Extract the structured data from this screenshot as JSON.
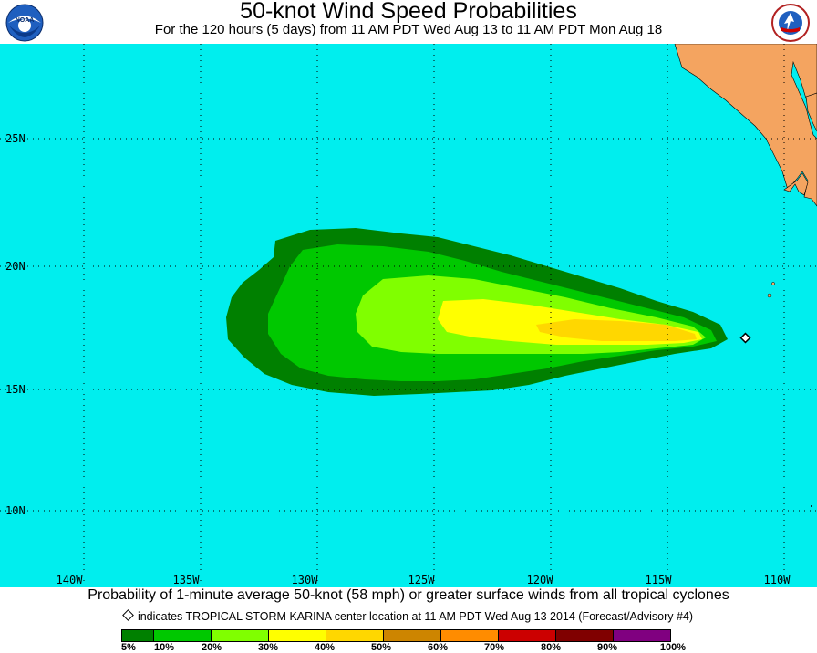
{
  "header": {
    "title": "50-knot Wind Speed Probabilities",
    "subtitle": "For the 120 hours (5 days) from 11 AM PDT Wed Aug 13 to 11 AM PDT Mon Aug 18",
    "left_logo_text": "NOAA",
    "right_logo_text": "NATIONAL WEATHER SERVICE"
  },
  "map": {
    "ocean_color": "#00eeee",
    "land_color": "#f4a460",
    "latitude_labels": [
      "25N",
      "20N",
      "15N",
      "10N"
    ],
    "longitude_labels": [
      "140W",
      "135W",
      "130W",
      "125W",
      "120W",
      "115W",
      "110W"
    ],
    "storm_marker_icon": "diamond-icon"
  },
  "footer": {
    "caption": "Probability of 1-minute average 50-knot (58 mph) or greater surface winds from all tropical cyclones",
    "note": "indicates TROPICAL STORM KARINA center location at 11 AM PDT Wed Aug 13 2014 (Forecast/Advisory #4)",
    "legend": {
      "colors": [
        "#008000",
        "#00c800",
        "#80ff00",
        "#ffff00",
        "#ffd700",
        "#cd8500",
        "#ff8c00",
        "#cc0000",
        "#800000",
        "#800080"
      ],
      "labels": [
        "5%",
        "10%",
        "20%",
        "30%",
        "40%",
        "50%",
        "60%",
        "70%",
        "80%",
        "90%",
        "100%"
      ]
    }
  }
}
